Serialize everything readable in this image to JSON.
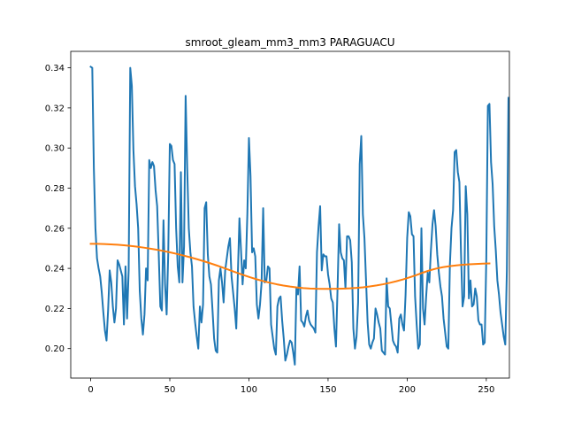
{
  "chart_data": {
    "type": "line",
    "title": "smroot_gleam_mm3_mm3 PARAGUACU",
    "xlabel": "",
    "ylabel": "",
    "xlim": [
      -12.6,
      264.6
    ],
    "ylim": [
      0.1853,
      0.3482
    ],
    "xticks": [
      0,
      50,
      100,
      150,
      200,
      250
    ],
    "yticks": [
      0.2,
      0.22,
      0.24,
      0.26,
      0.28,
      0.3,
      0.32,
      0.34
    ],
    "ytick_labels": [
      "0.20",
      "0.22",
      "0.24",
      "0.26",
      "0.28",
      "0.30",
      "0.32",
      "0.34"
    ],
    "grid": false,
    "colors": {
      "series": "#1f77b4",
      "trend": "#ff7f0e"
    },
    "series": [
      {
        "values": [
          0.3405,
          0.34,
          0.29,
          0.26,
          0.245,
          0.24,
          0.236,
          0.228,
          0.218,
          0.209,
          0.204,
          0.219,
          0.239,
          0.233,
          0.221,
          0.213,
          0.22,
          0.244,
          0.242,
          0.239,
          0.236,
          0.212,
          0.241,
          0.215,
          0.239,
          0.34,
          0.331,
          0.299,
          0.281,
          0.272,
          0.26,
          0.229,
          0.215,
          0.207,
          0.217,
          0.24,
          0.234,
          0.294,
          0.29,
          0.293,
          0.291,
          0.279,
          0.271,
          0.247,
          0.221,
          0.219,
          0.264,
          0.232,
          0.217,
          0.247,
          0.302,
          0.301,
          0.294,
          0.292,
          0.26,
          0.241,
          0.233,
          0.288,
          0.233,
          0.251,
          0.326,
          0.29,
          0.26,
          0.248,
          0.241,
          0.221,
          0.213,
          0.206,
          0.2,
          0.221,
          0.213,
          0.222,
          0.27,
          0.273,
          0.247,
          0.236,
          0.232,
          0.219,
          0.205,
          0.199,
          0.198,
          0.234,
          0.24,
          0.233,
          0.223,
          0.239,
          0.245,
          0.251,
          0.255,
          0.236,
          0.228,
          0.22,
          0.21,
          0.237,
          0.265,
          0.249,
          0.232,
          0.244,
          0.24,
          0.267,
          0.305,
          0.286,
          0.248,
          0.25,
          0.246,
          0.222,
          0.215,
          0.222,
          0.233,
          0.27,
          0.233,
          0.234,
          0.241,
          0.24,
          0.212,
          0.206,
          0.2,
          0.197,
          0.221,
          0.225,
          0.226,
          0.214,
          0.205,
          0.194,
          0.197,
          0.201,
          0.204,
          0.203,
          0.198,
          0.192,
          0.23,
          0.227,
          0.241,
          0.214,
          0.213,
          0.211,
          0.216,
          0.219,
          0.214,
          0.212,
          0.211,
          0.21,
          0.208,
          0.248,
          0.261,
          0.271,
          0.239,
          0.247,
          0.246,
          0.246,
          0.237,
          0.232,
          0.225,
          0.223,
          0.21,
          0.201,
          0.23,
          0.262,
          0.248,
          0.245,
          0.244,
          0.23,
          0.256,
          0.256,
          0.254,
          0.243,
          0.21,
          0.2,
          0.206,
          0.223,
          0.292,
          0.306,
          0.267,
          0.255,
          0.234,
          0.213,
          0.202,
          0.2,
          0.203,
          0.205,
          0.22,
          0.217,
          0.213,
          0.21,
          0.199,
          0.198,
          0.197,
          0.235,
          0.221,
          0.22,
          0.212,
          0.204,
          0.202,
          0.201,
          0.198,
          0.215,
          0.217,
          0.212,
          0.209,
          0.227,
          0.255,
          0.268,
          0.266,
          0.257,
          0.256,
          0.226,
          0.212,
          0.2,
          0.202,
          0.26,
          0.22,
          0.212,
          0.226,
          0.238,
          0.233,
          0.249,
          0.262,
          0.269,
          0.261,
          0.247,
          0.238,
          0.231,
          0.226,
          0.215,
          0.208,
          0.201,
          0.2,
          0.242,
          0.26,
          0.269,
          0.298,
          0.299,
          0.288,
          0.283,
          0.248,
          0.221,
          0.226,
          0.281,
          0.267,
          0.225,
          0.234,
          0.221,
          0.222,
          0.23,
          0.226,
          0.214,
          0.212,
          0.212,
          0.202,
          0.203,
          0.245,
          0.321,
          0.322,
          0.293,
          0.282,
          0.261,
          0.249,
          0.234,
          0.227,
          0.218,
          0.212,
          0.206,
          0.202,
          0.239,
          0.325
        ]
      },
      {
        "values": [
          0.25225,
          0.25222,
          0.25213,
          0.25198,
          0.25177,
          0.2515,
          0.25117,
          0.25078,
          0.25033,
          0.24982,
          0.24925,
          0.24862,
          0.24793,
          0.24718,
          0.24637,
          0.2455,
          0.24457,
          0.24358,
          0.24253,
          0.24142,
          0.24025,
          0.23904,
          0.23782,
          0.23664,
          0.23553,
          0.23452,
          0.2336,
          0.23278,
          0.23206,
          0.23144,
          0.23092,
          0.2305,
          0.23018,
          0.22996,
          0.22983,
          0.22978,
          0.22978,
          0.22982,
          0.22991,
          0.23005,
          0.23027,
          0.23057,
          0.23097,
          0.23147,
          0.23207,
          0.23278,
          0.23359,
          0.23451,
          0.23553,
          0.23666,
          0.23789,
          0.239,
          0.2399,
          0.2406,
          0.2411,
          0.2415,
          0.2418,
          0.24205,
          0.24222,
          0.24235,
          0.24245
        ],
        "x_step": 4.2
      }
    ]
  }
}
